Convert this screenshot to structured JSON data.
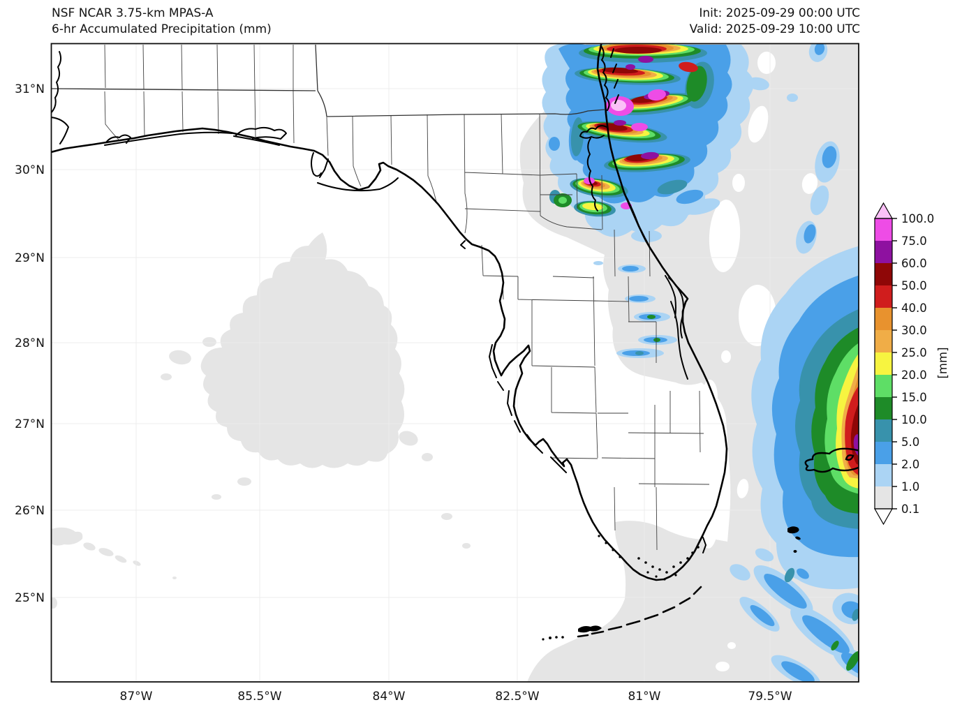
{
  "figure": {
    "title_line1": "NSF NCAR 3.75-km MPAS-A",
    "title_line2": "6-hr Accumulated Precipitation (mm)",
    "init_line": "Init: 2025-09-29 00:00 UTC",
    "valid_line": "Valid: 2025-09-29 10:00 UTC"
  },
  "chart_data": {
    "type": "heatmap",
    "title": "NSF NCAR 3.75-km MPAS-A",
    "subtitle": "6-hr Accumulated Precipitation (mm)",
    "init_time": "2025-09-29 00:00 UTC",
    "valid_time": "2025-09-29 10:00 UTC",
    "region": "Florida, eastern Gulf of Mexico and western Atlantic",
    "x_tick_labels": [
      "87°W",
      "85.5°W",
      "84°W",
      "82.5°W",
      "81°W",
      "79.5°W"
    ],
    "y_tick_labels": [
      "31°N",
      "30°N",
      "29°N",
      "28°N",
      "27°N",
      "26°N",
      "25°N"
    ],
    "colorbar_units": "[mm]",
    "colorbar_tick_labels": [
      "0.1",
      "1.0",
      "2.0",
      "5.0",
      "10.0",
      "15.0",
      "20.0",
      "25.0",
      "30.0",
      "40.0",
      "50.0",
      "60.0",
      "75.0",
      "100.0"
    ],
    "colorbar_colors_low_to_high": [
      "#e5e5e5",
      "#abd4f4",
      "#4aa0e8",
      "#3892ac",
      "#1e8b28",
      "#5ede66",
      "#f7f440",
      "#f0ad47",
      "#e8922e",
      "#d01d1d",
      "#8f0707",
      "#8e11a0",
      "#ee4ce6"
    ],
    "colorbar_over_color": "#fbc0f7",
    "colorbar_under_color": "#ffffff",
    "features": [
      "Intense convective cluster with >75-100 mm cores over northeast Florida near Jacksonville extending offshore",
      "Large rain shield with embedded 40-75 mm core offshore of southeast Florida at the eastern map edge, with a black track contour",
      "Curved outer rainbands (1-10 mm) over the southwest Atlantic in the lower-right corner",
      "Scattered light 1-10 mm streaks over east-central Florida",
      "Broad 0.1-1 mm coverage over the Atlantic, eastern Gulf of Mexico and parts of north Florida"
    ]
  }
}
